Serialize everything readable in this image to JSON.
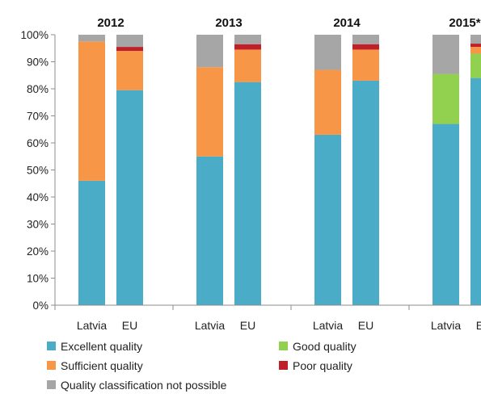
{
  "chart_data": {
    "type": "bar",
    "stacked": true,
    "title": "",
    "xlabel": "",
    "ylabel": "",
    "ylim": [
      0,
      100
    ],
    "y_ticks": [
      0,
      10,
      20,
      30,
      40,
      50,
      60,
      70,
      80,
      90,
      100
    ],
    "y_tick_labels": [
      "0%",
      "10%",
      "20%",
      "30%",
      "40%",
      "50%",
      "60%",
      "70%",
      "80%",
      "90%",
      "100%"
    ],
    "grid": false,
    "legend_position": "bottom",
    "groups": [
      "2012",
      "2013",
      "2014",
      "2015*"
    ],
    "categories": [
      "Latvia",
      "EU"
    ],
    "series": [
      {
        "name": "Excellent quality",
        "color": "#4aacc6",
        "values": [
          [
            46,
            79.5
          ],
          [
            55,
            82.5
          ],
          [
            63,
            83
          ],
          [
            67,
            84
          ]
        ]
      },
      {
        "name": "Good quality",
        "color": "#92d050",
        "values": [
          [
            0,
            0
          ],
          [
            0,
            0
          ],
          [
            0,
            0
          ],
          [
            18.5,
            9
          ]
        ]
      },
      {
        "name": "Sufficient quality",
        "color": "#f79646",
        "values": [
          [
            51.5,
            14.5
          ],
          [
            33,
            12
          ],
          [
            24,
            11.5
          ],
          [
            0,
            2.5
          ]
        ]
      },
      {
        "name": "Poor quality",
        "color": "#c0202a",
        "values": [
          [
            0,
            1.5
          ],
          [
            0,
            2
          ],
          [
            0,
            2
          ],
          [
            0,
            1.2
          ]
        ]
      },
      {
        "name": "Quality classification not possible",
        "color": "#a6a6a6",
        "values": [
          [
            2.5,
            4.5
          ],
          [
            12,
            3.5
          ],
          [
            13,
            3.5
          ],
          [
            14.5,
            3.3
          ]
        ]
      }
    ]
  }
}
